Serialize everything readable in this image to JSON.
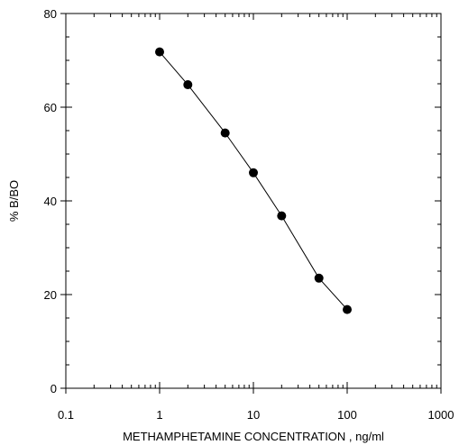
{
  "chart_data": {
    "type": "line",
    "title": "",
    "xlabel": "METHAMPHETAMINE CONCENTRATION , ng/ml",
    "ylabel": "% B/BO",
    "xscale": "log",
    "xlim": [
      0.1,
      1000
    ],
    "ylim": [
      0,
      80
    ],
    "grid": false,
    "legend": "none",
    "x_ticks": [
      0.1,
      1,
      10,
      100,
      1000
    ],
    "x_tick_labels": [
      "0.1",
      "1",
      "10",
      "100",
      "1000"
    ],
    "y_ticks": [
      0,
      20,
      40,
      60,
      80
    ],
    "y_tick_labels": [
      "0",
      "20",
      "40",
      "60",
      "80"
    ],
    "series": [
      {
        "x": [
          1,
          2,
          5,
          10,
          20,
          50,
          100
        ],
        "y": [
          71.8,
          64.8,
          54.5,
          46.0,
          36.8,
          23.5,
          16.8
        ],
        "color": "#000000",
        "marker": "filled-circle"
      }
    ]
  }
}
